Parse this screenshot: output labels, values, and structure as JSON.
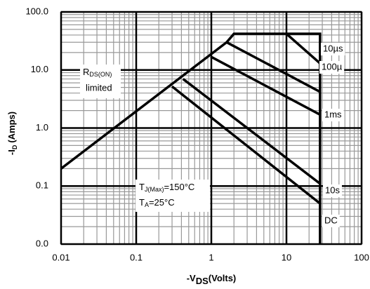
{
  "chart_data": {
    "type": "line",
    "log_x": true,
    "log_y": true,
    "grid": true,
    "minor_grid": true,
    "color": "#000000",
    "xlim": [
      0.01,
      100
    ],
    "xticks": [
      0.01,
      0.1,
      1,
      10,
      100
    ],
    "ylim": [
      0.01,
      100
    ],
    "yticks": [
      {
        "value": 0.01,
        "label": "0.0"
      },
      0.1,
      {
        "value": 1,
        "label": "1.0"
      },
      {
        "value": 10,
        "label": "10.0"
      },
      {
        "value": 100,
        "label": "100.0"
      }
    ],
    "x_label": {
      "pre": "-V",
      "sub": "DS",
      "post": "(Volts)"
    },
    "y_label": {
      "pre": "-I",
      "sub": "D",
      "post": "(Amps)"
    },
    "annotations": [
      {
        "main": "R",
        "sub": "DS(ON)",
        "line2": "limited"
      },
      {
        "main": "T",
        "sub": "J(Max)",
        "post": "=150°C"
      },
      {
        "main": "T",
        "sub": "A",
        "post": "=25°C"
      }
    ],
    "series": [
      {
        "x": [
          0.01,
          1.6,
          2,
          28,
          28
        ],
        "values": [
          0.2,
          30,
          42,
          42,
          0.01
        ]
      },
      {
        "name": "10µs",
        "x": [
          10,
          28
        ],
        "values": [
          42,
          13
        ]
      },
      {
        "name": "100µ",
        "x": [
          1.6,
          28
        ],
        "values": [
          30,
          4.2
        ]
      },
      {
        "name": "1ms",
        "x": [
          0.98,
          28
        ],
        "values": [
          17,
          1.7
        ]
      },
      {
        "name": "10s",
        "x": [
          0.42,
          28
        ],
        "values": [
          7,
          0.11
        ]
      },
      {
        "name": "DC",
        "x": [
          0.3,
          28
        ],
        "values": [
          5.2,
          0.05
        ]
      }
    ]
  }
}
